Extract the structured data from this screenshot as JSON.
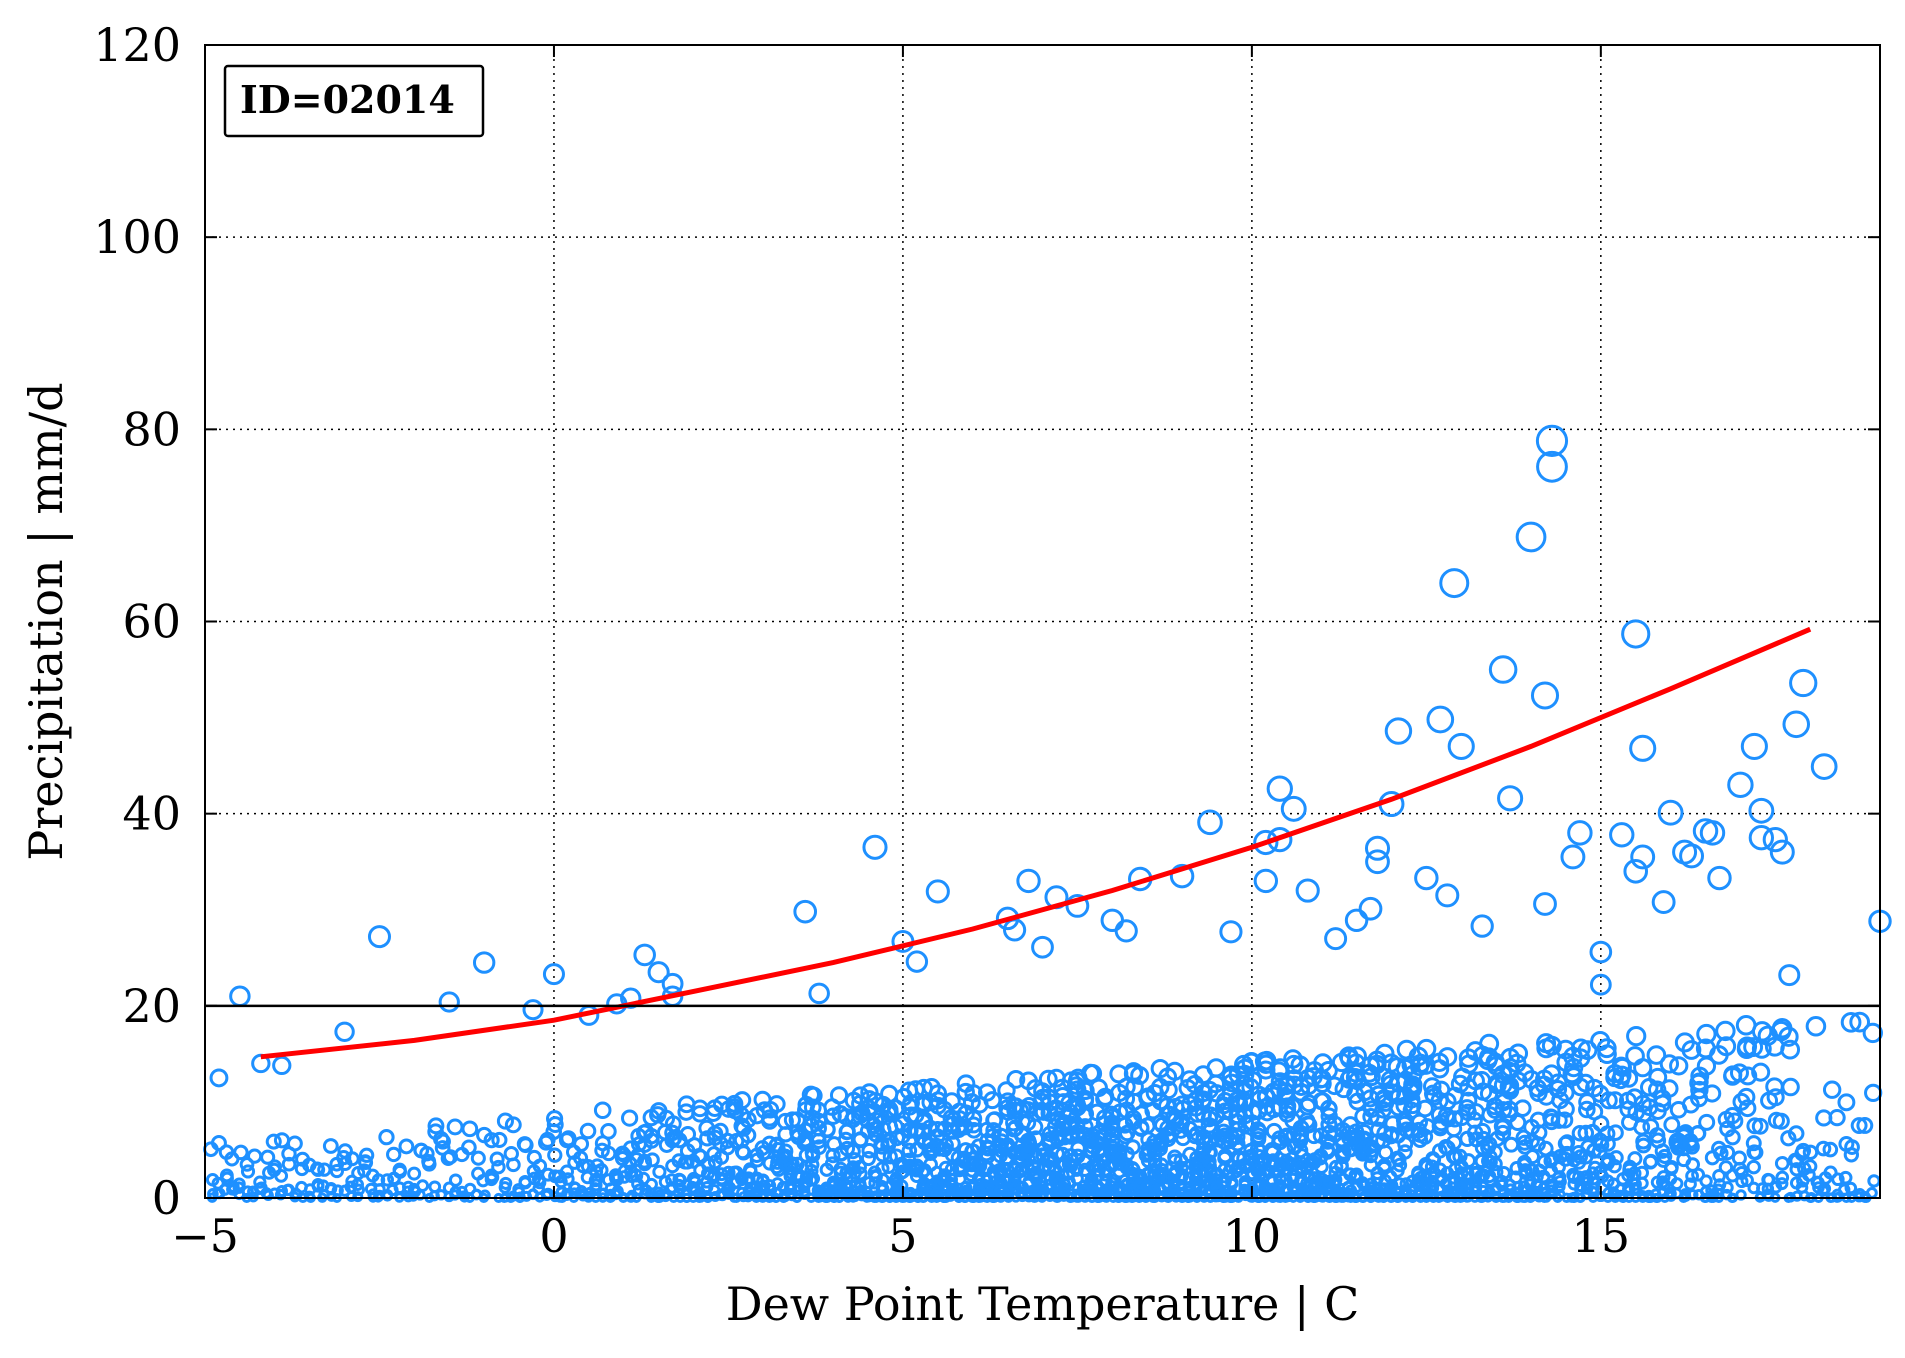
{
  "chart_data": {
    "type": "scatter",
    "title": "",
    "annotation": "ID=02014",
    "xlabel": "Dew Point Temperature | C",
    "ylabel": "Precipitation | mm/d",
    "xlim": [
      -5,
      19
    ],
    "ylim": [
      0,
      120
    ],
    "xticks": [
      -5,
      0,
      5,
      10,
      15
    ],
    "xtick_labels": [
      "−5",
      "0",
      "5",
      "10",
      "15"
    ],
    "yticks": [
      0,
      20,
      40,
      60,
      80,
      100,
      120
    ],
    "ytick_labels": [
      "0",
      "20",
      "40",
      "60",
      "80",
      "100",
      "120"
    ],
    "grid": true,
    "threshold_line": {
      "y": 20,
      "color": "#000000"
    },
    "colors": {
      "points": "#1e90ff",
      "fit": "#ff0000"
    },
    "fit_curve": {
      "type": "exponential",
      "x": [
        -4.2,
        -2,
        0,
        2,
        4,
        6,
        8,
        10,
        12,
        14,
        16,
        18
      ],
      "y": [
        14.7,
        16.4,
        18.5,
        21.5,
        24.5,
        28.0,
        32.0,
        36.5,
        41.5,
        47.0,
        53.0,
        59.2
      ]
    },
    "series": [
      {
        "highlighted_points": {
          "x": [
            -4.8,
            -4.5,
            -4.2,
            -3.9,
            -2.5,
            -3.0,
            -1.5,
            -1.0,
            -0.3,
            0.0,
            0.5,
            0.9,
            1.1,
            1.3,
            1.5,
            1.7,
            1.7,
            3.6,
            3.8,
            4.6,
            5.0,
            5.2,
            5.5,
            6.5,
            6.6,
            6.8,
            7.0,
            7.2,
            7.5,
            8.0,
            8.2,
            8.4,
            9.0,
            9.4,
            9.7,
            10.2,
            10.2,
            10.4,
            10.4,
            10.6,
            10.8,
            11.2,
            11.5,
            11.7,
            11.8,
            11.8,
            12.0,
            12.1,
            12.5,
            12.7,
            12.8,
            12.9,
            13.0,
            13.3,
            13.6,
            13.7,
            14.0,
            14.2,
            14.2,
            14.3,
            14.3,
            14.6,
            14.7,
            15.0,
            15.0,
            15.3,
            15.5,
            15.5,
            15.6,
            15.6,
            15.9,
            16.0,
            16.2,
            16.3,
            16.5,
            16.6,
            16.7,
            17.0,
            17.2,
            17.3,
            17.3,
            17.5,
            17.6,
            17.7,
            17.8,
            17.9,
            18.2,
            19.0
          ],
          "y": [
            12.5,
            21.0,
            14.0,
            13.8,
            27.2,
            17.3,
            20.4,
            24.5,
            19.6,
            23.3,
            19.0,
            20.2,
            20.8,
            25.3,
            23.5,
            22.3,
            21.0,
            29.8,
            21.3,
            36.5,
            26.7,
            24.6,
            31.9,
            29.1,
            27.9,
            33.0,
            26.1,
            31.3,
            30.4,
            28.9,
            27.8,
            33.2,
            33.5,
            39.1,
            27.7,
            37.0,
            33.0,
            42.6,
            37.3,
            40.5,
            32.0,
            27.0,
            28.9,
            30.1,
            36.4,
            35.0,
            41.0,
            48.6,
            33.3,
            49.8,
            31.5,
            64.0,
            47.0,
            28.3,
            55.0,
            41.6,
            68.8,
            52.3,
            30.6,
            78.8,
            76.1,
            35.5,
            38.0,
            25.6,
            22.2,
            37.8,
            34.0,
            58.7,
            46.8,
            35.5,
            30.8,
            40.1,
            36.0,
            35.6,
            38.2,
            38.0,
            33.3,
            43.0,
            47.0,
            40.3,
            37.5,
            37.3,
            36.0,
            23.2,
            49.3,
            53.6,
            44.9,
            28.8
          ]
        }
      }
    ]
  }
}
